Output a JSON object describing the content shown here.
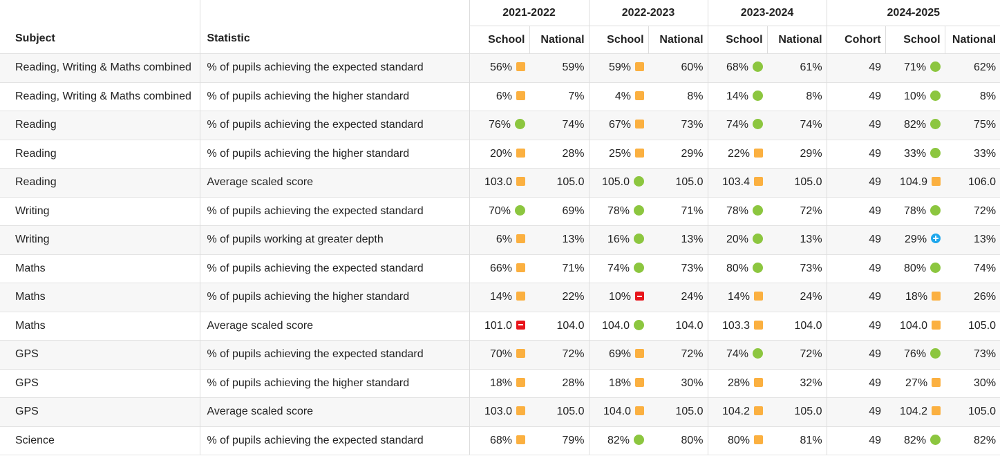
{
  "header": {
    "subject": "Subject",
    "statistic": "Statistic",
    "years": [
      "2021-2022",
      "2022-2023",
      "2023-2024",
      "2024-2025"
    ],
    "columns": [
      "School",
      "National",
      "School",
      "National",
      "School",
      "National",
      "Cohort",
      "School",
      "National"
    ]
  },
  "rows": [
    {
      "subject": "Reading, Writing & Maths combined",
      "statistic": "% of pupils achieving the expected standard",
      "cells": [
        "56%",
        "59%",
        "59%",
        "60%",
        "68%",
        "61%",
        "49",
        "71%",
        "62%"
      ]
    },
    {
      "subject": "Reading, Writing & Maths combined",
      "statistic": "% of pupils achieving the higher standard",
      "cells": [
        "6%",
        "7%",
        "4%",
        "8%",
        "14%",
        "8%",
        "49",
        "10%",
        "8%"
      ]
    },
    {
      "subject": "Reading",
      "statistic": "% of pupils achieving the expected standard",
      "cells": [
        "76%",
        "74%",
        "67%",
        "73%",
        "74%",
        "74%",
        "49",
        "82%",
        "75%"
      ]
    },
    {
      "subject": "Reading",
      "statistic": "% of pupils achieving the higher standard",
      "cells": [
        "20%",
        "28%",
        "25%",
        "29%",
        "22%",
        "29%",
        "49",
        "33%",
        "33%"
      ]
    },
    {
      "subject": "Reading",
      "statistic": "Average scaled score",
      "cells": [
        "103.0",
        "105.0",
        "105.0",
        "105.0",
        "103.4",
        "105.0",
        "49",
        "104.9",
        "106.0"
      ]
    },
    {
      "subject": "Writing",
      "statistic": "% of pupils achieving the expected standard",
      "cells": [
        "70%",
        "69%",
        "78%",
        "71%",
        "78%",
        "72%",
        "49",
        "78%",
        "72%"
      ]
    },
    {
      "subject": "Writing",
      "statistic": "% of pupils working at greater depth",
      "cells": [
        "6%",
        "13%",
        "16%",
        "13%",
        "20%",
        "13%",
        "49",
        "29%",
        "13%"
      ]
    },
    {
      "subject": "Maths",
      "statistic": "% of pupils achieving the expected standard",
      "cells": [
        "66%",
        "71%",
        "74%",
        "73%",
        "80%",
        "73%",
        "49",
        "80%",
        "74%"
      ]
    },
    {
      "subject": "Maths",
      "statistic": "% of pupils achieving the higher standard",
      "cells": [
        "14%",
        "22%",
        "10%",
        "24%",
        "14%",
        "24%",
        "49",
        "18%",
        "26%"
      ]
    },
    {
      "subject": "Maths",
      "statistic": "Average scaled score",
      "cells": [
        "101.0",
        "104.0",
        "104.0",
        "104.0",
        "103.3",
        "104.0",
        "49",
        "104.0",
        "105.0"
      ]
    },
    {
      "subject": "GPS",
      "statistic": "% of pupils achieving the expected standard",
      "cells": [
        "70%",
        "72%",
        "69%",
        "72%",
        "74%",
        "72%",
        "49",
        "76%",
        "73%"
      ]
    },
    {
      "subject": "GPS",
      "statistic": "% of pupils achieving the higher standard",
      "cells": [
        "18%",
        "28%",
        "18%",
        "30%",
        "28%",
        "32%",
        "49",
        "27%",
        "30%"
      ]
    },
    {
      "subject": "GPS",
      "statistic": "Average scaled score",
      "cells": [
        "103.0",
        "105.0",
        "104.0",
        "105.0",
        "104.2",
        "105.0",
        "49",
        "104.2",
        "105.0"
      ]
    },
    {
      "subject": "Science",
      "statistic": "% of pupils achieving the expected standard",
      "cells": [
        "68%",
        "79%",
        "82%",
        "80%",
        "80%",
        "81%",
        "49",
        "82%",
        "82%"
      ]
    }
  ]
}
